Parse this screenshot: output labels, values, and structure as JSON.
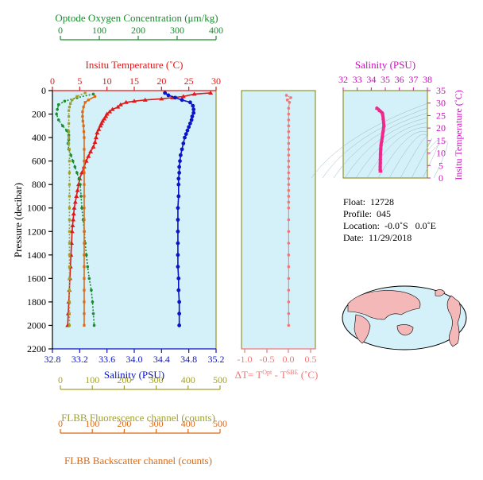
{
  "colors": {
    "oxygen": "#1a8c2e",
    "temperature": "#e01818",
    "salinity": "#0a14c8",
    "fluorescence": "#a0a030",
    "backscatter": "#d86a18",
    "delta_t": "#f07878",
    "ts_salinity": "#d010c0",
    "ts_points": "#f0288c",
    "panel_bg": "#d4f0f8",
    "frame": "#808000"
  },
  "axes": {
    "oxygen": {
      "label": "Optode Oxygen Concentration (μm/kg)",
      "ticks": [
        "0",
        "100",
        "200",
        "300",
        "400"
      ]
    },
    "temperature": {
      "label": "Insitu Temperature (˚C)",
      "ticks": [
        "0",
        "5",
        "10",
        "15",
        "20",
        "25",
        "30"
      ]
    },
    "pressure": {
      "label": "Pressure (decibar)",
      "ticks": [
        "0",
        "200",
        "400",
        "600",
        "800",
        "1000",
        "1200",
        "1400",
        "1600",
        "1800",
        "2000",
        "2200"
      ]
    },
    "salinity": {
      "label": "Salinity (PSU)",
      "ticks": [
        "32.8",
        "33.2",
        "33.6",
        "34.0",
        "34.4",
        "34.8",
        "35.2"
      ]
    },
    "delta_t": {
      "label_prefix": "ΔT= T",
      "label_sup1": "Opt",
      "label_mid": " - T",
      "label_sup2": "SBE",
      "label_suffix": " (˚C)",
      "ticks": [
        "-1.0",
        "-0.5",
        "0.0",
        "0.5"
      ]
    },
    "fluorescence": {
      "label": "FLBB Fluorescence channel (counts)",
      "ticks": [
        "0",
        "100",
        "200",
        "300",
        "400",
        "500"
      ]
    },
    "backscatter": {
      "label": "FLBB Backscatter channel (counts)",
      "ticks": [
        "0",
        "100",
        "200",
        "300",
        "400",
        "500"
      ]
    },
    "ts_salinity": {
      "label": "Salinity (PSU)",
      "ticks": [
        "32",
        "33",
        "34",
        "35",
        "36",
        "37",
        "38"
      ]
    },
    "ts_temperature": {
      "label": "Insitu Temperature (˚C)",
      "ticks": [
        "0",
        "5",
        "10",
        "15",
        "20",
        "25",
        "30",
        "35"
      ]
    }
  },
  "info": {
    "float": "Float:  12728",
    "profile": "Profile:  045",
    "location": "Location:  -0.0˚S   0.0˚E",
    "date": "Date:  11/29/2018"
  },
  "chart_data": [
    {
      "type": "line",
      "panel": "profiles",
      "y_name": "pressure (decibar)",
      "ylim": [
        2200,
        0
      ],
      "grid": false,
      "series": [
        {
          "key": "temperature",
          "xlim": [
            0,
            30
          ],
          "points": [
            [
              29,
              20
            ],
            [
              26,
              30
            ],
            [
              24,
              50
            ],
            [
              22,
              60
            ],
            [
              20,
              70
            ],
            [
              17,
              80
            ],
            [
              15,
              90
            ],
            [
              13.5,
              100
            ],
            [
              12.5,
              120
            ],
            [
              12,
              140
            ],
            [
              11,
              160
            ],
            [
              10.5,
              180
            ],
            [
              10,
              200
            ],
            [
              9.8,
              220
            ],
            [
              9.5,
              240
            ],
            [
              9.2,
              260
            ],
            [
              9,
              280
            ],
            [
              8.8,
              300
            ],
            [
              8.5,
              330
            ],
            [
              8.2,
              360
            ],
            [
              8,
              400
            ],
            [
              7.8,
              440
            ],
            [
              7.5,
              480
            ],
            [
              7,
              520
            ],
            [
              6.6,
              560
            ],
            [
              6.2,
              600
            ],
            [
              5.8,
              650
            ],
            [
              5.4,
              700
            ],
            [
              5,
              750
            ],
            [
              4.8,
              800
            ],
            [
              4.6,
              850
            ],
            [
              4.4,
              900
            ],
            [
              4.2,
              950
            ],
            [
              4,
              1000
            ],
            [
              3.9,
              1050
            ],
            [
              3.8,
              1100
            ],
            [
              3.7,
              1150
            ],
            [
              3.6,
              1200
            ],
            [
              3.5,
              1300
            ],
            [
              3.4,
              1400
            ],
            [
              3.3,
              1500
            ],
            [
              3.2,
              1600
            ],
            [
              3.1,
              1700
            ],
            [
              3,
              1800
            ],
            [
              2.9,
              1900
            ],
            [
              2.8,
              2000
            ]
          ]
        },
        {
          "key": "salinity",
          "xlim": [
            32.8,
            35.2
          ],
          "points": [
            [
              34.45,
              20
            ],
            [
              34.5,
              40
            ],
            [
              34.6,
              60
            ],
            [
              34.7,
              80
            ],
            [
              34.82,
              100
            ],
            [
              34.86,
              130
            ],
            [
              34.87,
              160
            ],
            [
              34.87,
              190
            ],
            [
              34.85,
              220
            ],
            [
              34.84,
              250
            ],
            [
              34.82,
              280
            ],
            [
              34.8,
              310
            ],
            [
              34.78,
              340
            ],
            [
              34.76,
              370
            ],
            [
              34.74,
              400
            ],
            [
              34.72,
              450
            ],
            [
              34.7,
              500
            ],
            [
              34.68,
              550
            ],
            [
              34.67,
              600
            ],
            [
              34.66,
              650
            ],
            [
              34.66,
              700
            ],
            [
              34.65,
              750
            ],
            [
              34.65,
              800
            ],
            [
              34.65,
              900
            ],
            [
              34.64,
              1000
            ],
            [
              34.64,
              1100
            ],
            [
              34.64,
              1200
            ],
            [
              34.64,
              1300
            ],
            [
              34.64,
              1400
            ],
            [
              34.64,
              1500
            ],
            [
              34.65,
              1600
            ],
            [
              34.65,
              1700
            ],
            [
              34.66,
              1800
            ],
            [
              34.66,
              1900
            ],
            [
              34.66,
              2000
            ]
          ]
        },
        {
          "key": "oxygen",
          "xlim": [
            0,
            400
          ],
          "points": [
            [
              100,
              30
            ],
            [
              60,
              60
            ],
            [
              30,
              90
            ],
            [
              15,
              120
            ],
            [
              12,
              160
            ],
            [
              10,
              200
            ],
            [
              15,
              250
            ],
            [
              25,
              300
            ],
            [
              35,
              340
            ],
            [
              40,
              380
            ],
            [
              40,
              420
            ],
            [
              38,
              450
            ],
            [
              40,
              500
            ],
            [
              45,
              550
            ],
            [
              50,
              600
            ],
            [
              55,
              650
            ],
            [
              60,
              700
            ],
            [
              65,
              750
            ],
            [
              68,
              800
            ],
            [
              70,
              900
            ],
            [
              72,
              1000
            ],
            [
              75,
              1100
            ],
            [
              78,
              1200
            ],
            [
              80,
              1300
            ],
            [
              83,
              1400
            ],
            [
              86,
              1500
            ],
            [
              90,
              1600
            ],
            [
              95,
              1700
            ],
            [
              98,
              1800
            ],
            [
              100,
              1900
            ],
            [
              102,
              2000
            ]
          ]
        },
        {
          "key": "fluorescence",
          "xlim": [
            0,
            500
          ],
          "points": [
            [
              100,
              20
            ],
            [
              75,
              50
            ],
            [
              60,
              80
            ],
            [
              55,
              110
            ],
            [
              52,
              140
            ],
            [
              50,
              170
            ],
            [
              50,
              220
            ],
            [
              50,
              280
            ],
            [
              50,
              350
            ],
            [
              50,
              400
            ],
            [
              50,
              450
            ],
            [
              52,
              500
            ],
            [
              52,
              600
            ],
            [
              52,
              700
            ],
            [
              52,
              800
            ],
            [
              52,
              900
            ],
            [
              52,
              1000
            ],
            [
              52,
              1100
            ],
            [
              52,
              1200
            ],
            [
              52,
              1300
            ],
            [
              52,
              1400
            ],
            [
              52,
              1500
            ],
            [
              52,
              1600
            ],
            [
              52,
              1700
            ],
            [
              52,
              1800
            ],
            [
              52,
              1900
            ],
            [
              52,
              2000
            ]
          ]
        },
        {
          "key": "backscatter",
          "xlim": [
            0,
            500
          ],
          "points": [
            [
              130,
              50
            ],
            [
              110,
              80
            ],
            [
              100,
              100
            ],
            [
              95,
              140
            ],
            [
              92,
              180
            ],
            [
              92,
              220
            ],
            [
              93,
              260
            ],
            [
              95,
              300
            ],
            [
              96,
              350
            ],
            [
              97,
              400
            ],
            [
              97,
              500
            ],
            [
              97,
              600
            ],
            [
              97,
              700
            ],
            [
              97,
              800
            ],
            [
              97,
              900
            ],
            [
              97,
              1000
            ],
            [
              97,
              1100
            ],
            [
              97,
              1200
            ],
            [
              97,
              1300
            ],
            [
              97,
              1400
            ],
            [
              97,
              1500
            ],
            [
              97,
              1600
            ],
            [
              97,
              1700
            ],
            [
              97,
              1800
            ],
            [
              97,
              1900
            ],
            [
              97,
              2000
            ]
          ]
        }
      ]
    },
    {
      "type": "scatter",
      "panel": "delta_t",
      "name": "",
      "xlim": [
        -1.2,
        0.6
      ],
      "ylim": [
        2200,
        0
      ],
      "points": [
        [
          -0.05,
          40
        ],
        [
          0.05,
          60
        ],
        [
          -0.03,
          80
        ],
        [
          0.02,
          100
        ],
        [
          0,
          150
        ],
        [
          0,
          200
        ],
        [
          0,
          250
        ],
        [
          0,
          300
        ],
        [
          0,
          350
        ],
        [
          0,
          400
        ],
        [
          0,
          450
        ],
        [
          0,
          500
        ],
        [
          0,
          550
        ],
        [
          0,
          600
        ],
        [
          0,
          650
        ],
        [
          0,
          700
        ],
        [
          0,
          750
        ],
        [
          0,
          800
        ],
        [
          0,
          850
        ],
        [
          0,
          900
        ],
        [
          0,
          950
        ],
        [
          0,
          1000
        ],
        [
          0,
          1100
        ],
        [
          0,
          1200
        ],
        [
          0,
          1300
        ],
        [
          0,
          1400
        ],
        [
          0,
          1500
        ],
        [
          0,
          1600
        ],
        [
          0,
          1700
        ],
        [
          0,
          1800
        ],
        [
          0,
          1900
        ],
        [
          0,
          2000
        ]
      ]
    },
    {
      "type": "scatter",
      "panel": "ts_diagram",
      "xlim": [
        32,
        38
      ],
      "ylim": [
        0,
        35
      ],
      "points": [
        [
          34.4,
          28
        ],
        [
          34.6,
          27
        ],
        [
          34.8,
          26
        ],
        [
          34.85,
          24
        ],
        [
          34.9,
          21
        ],
        [
          34.85,
          19
        ],
        [
          34.8,
          17
        ],
        [
          34.75,
          15
        ],
        [
          34.7,
          13.5
        ],
        [
          34.68,
          12
        ],
        [
          34.66,
          10
        ],
        [
          34.65,
          8
        ],
        [
          34.65,
          6.5
        ],
        [
          34.64,
          5
        ],
        [
          34.64,
          4
        ],
        [
          34.64,
          3.5
        ],
        [
          34.65,
          3
        ],
        [
          34.66,
          2.8
        ]
      ]
    }
  ]
}
